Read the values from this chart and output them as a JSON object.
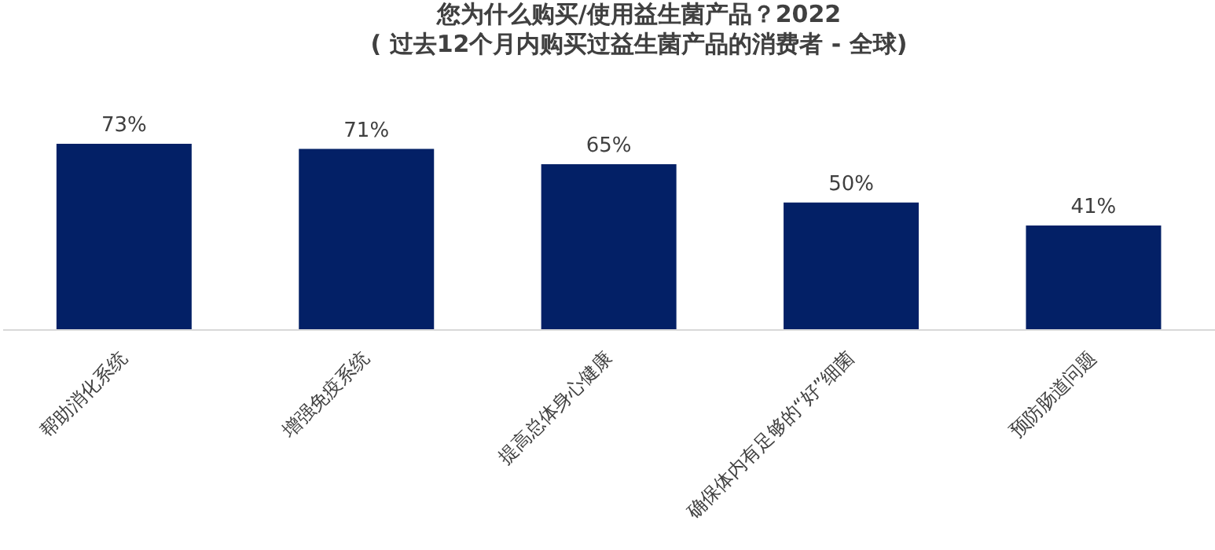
{
  "chart_data": {
    "type": "bar",
    "title": "您为什么购买/使用益生菌产品？2022",
    "subtitle": "( 过去12个月内购买过益生菌产品的消费者 - 全球)",
    "categories": [
      "帮助消化系统",
      "增强免疫系统",
      "提高总体身心健康",
      "确保体内有足够的“好”细菌",
      "预防肠道问题"
    ],
    "values": [
      73,
      71,
      65,
      50,
      41
    ],
    "color": "#032066",
    "data_labels": true,
    "value_labels": [
      "73%",
      "71%",
      "65%",
      "50%",
      "41%"
    ],
    "grid": false,
    "legend": false
  }
}
